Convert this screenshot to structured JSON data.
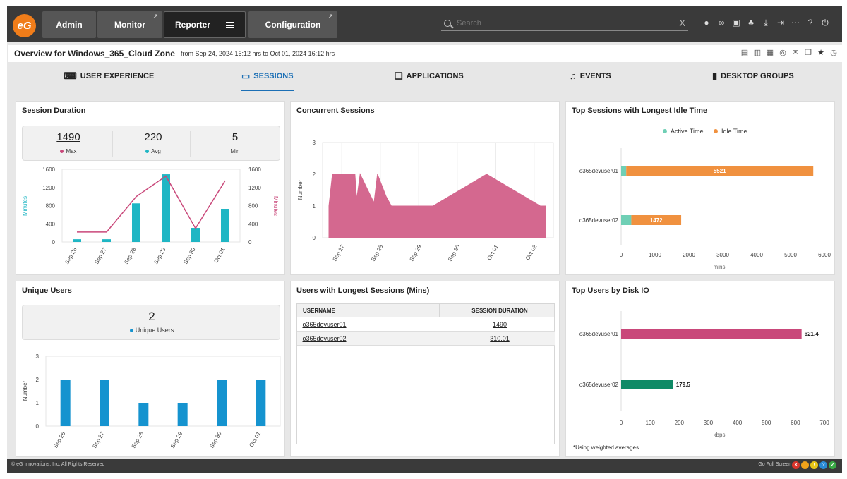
{
  "nav": {
    "logo_text": "eG",
    "tabs": [
      {
        "label": "Admin"
      },
      {
        "label": "Monitor"
      },
      {
        "label": "Reporter"
      },
      {
        "label": "Configuration"
      }
    ],
    "search_placeholder": "Search",
    "clear_symbol": "X",
    "icons": [
      "user-icon",
      "link-icon",
      "layout-icon",
      "bell-icon",
      "download-icon",
      "signin-icon",
      "more-icon",
      "help-icon",
      "power-icon"
    ]
  },
  "header": {
    "title": "Overview for Windows_365_Cloud Zone",
    "range": "from Sep 24, 2024 16:12 hrs to Oct 01, 2024 16:12 hrs"
  },
  "subtabs": [
    {
      "label": "USER EXPERIENCE"
    },
    {
      "label": "SESSIONS"
    },
    {
      "label": "APPLICATIONS"
    },
    {
      "label": "EVENTS"
    },
    {
      "label": "DESKTOP GROUPS"
    }
  ],
  "session_duration": {
    "title": "Session Duration",
    "stats": [
      {
        "value": "1490",
        "label": "Max"
      },
      {
        "value": "220",
        "label": "Avg"
      },
      {
        "value": "5",
        "label": "Min"
      }
    ]
  },
  "concurrent_sessions": {
    "title": "Concurrent Sessions"
  },
  "idle_sessions": {
    "title": "Top Sessions with Longest Idle Time"
  },
  "unique_users": {
    "title": "Unique Users",
    "value": "2",
    "label": "Unique Users"
  },
  "longest_sessions": {
    "title": "Users with Longest Sessions (Mins)",
    "columns": [
      "USERNAME",
      "SESSION DURATION"
    ],
    "rows": [
      {
        "user": "o365devuser01",
        "duration": "1490"
      },
      {
        "user": "o365devuser02",
        "duration": "310.01"
      }
    ]
  },
  "disk_io": {
    "title": "Top Users by Disk IO",
    "note": "*Using weighted averages"
  },
  "footer": {
    "copyright": "© eG Innovations, Inc. All Rights Reserved",
    "fullscreen": "Go Full Screen"
  },
  "colors": {
    "teal": "#1fb6c4",
    "pink": "#c9487a",
    "area": "#d4688f",
    "active": "#6fcfb5",
    "idle": "#f0913f",
    "blue": "#1593cf",
    "green": "#0f8a66",
    "accent": "#1b6fb5"
  },
  "chart_data": [
    {
      "type": "bar",
      "title": "Session Duration",
      "categories": [
        "Sep 26",
        "Sep 27",
        "Sep 28",
        "Sep 29",
        "Sep 30",
        "Oct 01"
      ],
      "series": [
        {
          "values": [
            60,
            60,
            850,
            1490,
            310,
            730
          ]
        },
        {
          "values": [
            220,
            220,
            1000,
            1450,
            300,
            1350
          ]
        }
      ],
      "ylabel": "Minutes",
      "y2label": "Minutes",
      "ylim": [
        0,
        1600
      ],
      "yticks": [
        "0",
        "400",
        "800",
        "1200",
        "1600"
      ]
    },
    {
      "type": "area",
      "title": "Concurrent Sessions",
      "x": [
        "Sep 27",
        "Sep 28",
        "Sep 29",
        "Sep 30",
        "Oct 01",
        "Oct 02"
      ],
      "points": [
        [
          0,
          1
        ],
        [
          0.02,
          2
        ],
        [
          0.15,
          2
        ],
        [
          0.16,
          1.2
        ],
        [
          0.18,
          2
        ],
        [
          0.26,
          1.1
        ],
        [
          0.28,
          2
        ],
        [
          0.33,
          1.3
        ],
        [
          0.36,
          1
        ],
        [
          0.6,
          1
        ],
        [
          0.91,
          2
        ],
        [
          1.22,
          1
        ],
        [
          1.25,
          1
        ],
        [
          1.25,
          0
        ],
        [
          0,
          0
        ]
      ],
      "ylabel": "Number",
      "ylim": [
        0,
        3
      ],
      "yticks": [
        "0",
        "1",
        "2",
        "3"
      ]
    },
    {
      "type": "bar",
      "title": "Top Sessions with Longest Idle Time",
      "orientation": "horizontal",
      "categories": [
        "o365devuser01",
        "o365devuser02"
      ],
      "series": [
        {
          "name": "Active Time",
          "values": [
            150,
            300
          ]
        },
        {
          "name": "Idle Time",
          "values": [
            5521,
            1472
          ]
        }
      ],
      "data_labels": [
        "5521",
        "1472"
      ],
      "xlabel": "mins",
      "xlim": [
        0,
        6000
      ],
      "xticks": [
        "0",
        "1000",
        "2000",
        "3000",
        "4000",
        "5000",
        "6000"
      ],
      "legend": "top"
    },
    {
      "type": "bar",
      "title": "Unique Users",
      "categories": [
        "Sep 26",
        "Sep 27",
        "Sep 28",
        "Sep 29",
        "Sep 30",
        "Oct 01"
      ],
      "values": [
        2,
        2,
        1,
        1,
        2,
        2
      ],
      "ylabel": "Number",
      "ylim": [
        0,
        3
      ],
      "yticks": [
        "0",
        "1",
        "2",
        "3"
      ]
    },
    {
      "type": "bar",
      "title": "Top Users by Disk IO",
      "orientation": "horizontal",
      "categories": [
        "o365devuser01",
        "o365devuser02"
      ],
      "values": [
        621.4,
        179.5
      ],
      "data_labels": [
        "621.4",
        "179.5"
      ],
      "xlabel": "kbps",
      "xlim": [
        0,
        700
      ],
      "xticks": [
        "0",
        "100",
        "200",
        "300",
        "400",
        "500",
        "600",
        "700"
      ]
    }
  ]
}
